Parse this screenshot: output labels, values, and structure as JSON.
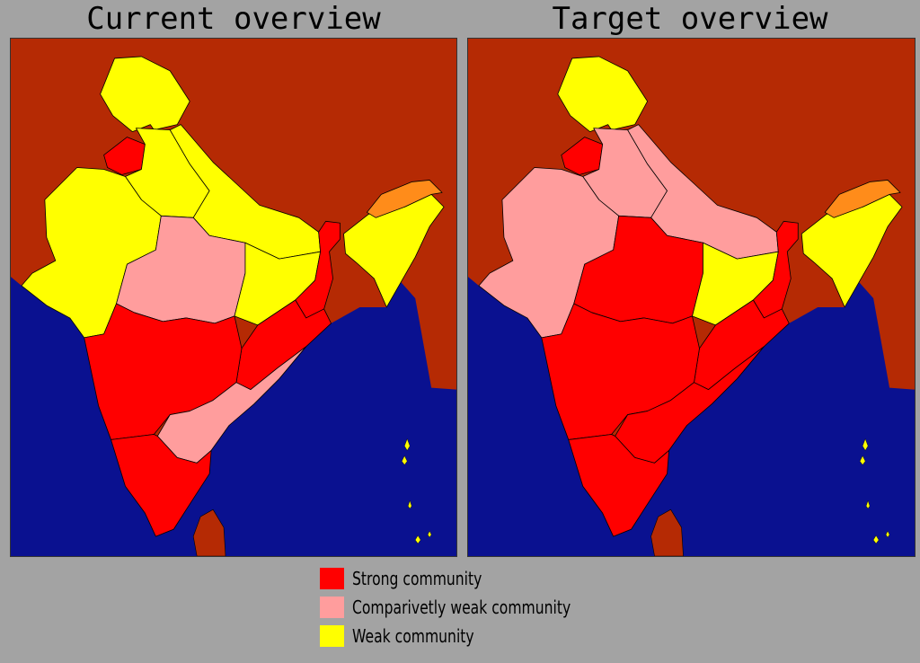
{
  "titles": {
    "left": "Current overview",
    "right": "Target overview"
  },
  "colors": {
    "strong": "#ff0000",
    "weak_comparatively": "#ff9d9d",
    "weak": "#ffff00",
    "land_outside": "#b52a04",
    "sea": "#0a1190",
    "arunachal": "#ff8c1a",
    "background": "#a3a3a3"
  },
  "legend": [
    {
      "key": "strong",
      "label": "Strong community"
    },
    {
      "key": "weak_comparatively",
      "label": "Comparivetly weak community"
    },
    {
      "key": "weak",
      "label": "Weak community"
    }
  ],
  "maps": {
    "current": {
      "north": "weak",
      "punjab": "strong",
      "northwest": "weak",
      "gangetic": "weak",
      "gujarat": "weak",
      "central": "weak_comparatively",
      "east": "weak",
      "bengal": "strong",
      "odisha": "strong",
      "maharashtra": "strong",
      "andhra": "weak_comparatively",
      "south": "strong",
      "northeast": "weak",
      "islands": "weak"
    },
    "target": {
      "north": "weak",
      "punjab": "strong",
      "northwest": "weak_comparatively",
      "gangetic": "weak_comparatively",
      "gujarat": "weak_comparatively",
      "central": "strong",
      "east": "weak",
      "bengal": "strong",
      "odisha": "strong",
      "maharashtra": "strong",
      "andhra": "strong",
      "south": "strong",
      "northeast": "weak",
      "islands": "weak"
    }
  }
}
